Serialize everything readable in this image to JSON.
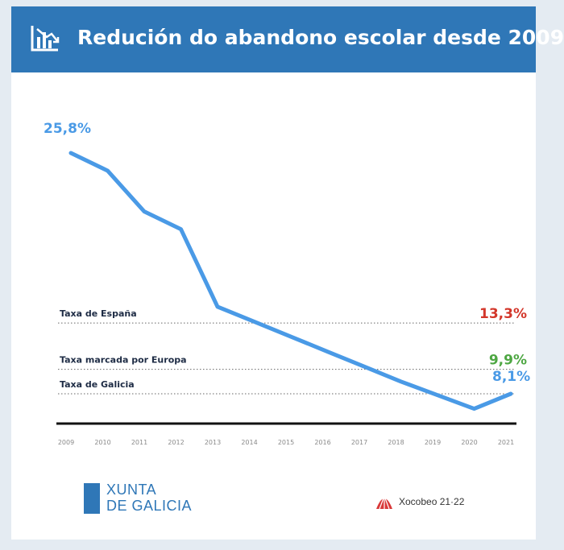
{
  "header": {
    "title": "Redución do abandono escolar desde 2009",
    "icon": "chart-decline-icon"
  },
  "colors": {
    "header_bg": "#2f77b7",
    "line": "#4a9ae6",
    "spain": "#d3372b",
    "europe": "#4ea743",
    "galicia": "#4a9ae6"
  },
  "chart_data": {
    "type": "line",
    "title": "Redución do abandono escolar desde 2009",
    "x": [
      "2009",
      "2010",
      "2011",
      "2012",
      "2013",
      "2014",
      "2015",
      "2016",
      "2017",
      "2018",
      "2019",
      "2020",
      "2021"
    ],
    "y": [
      25.8,
      24.5,
      21.5,
      20.2,
      14.5,
      13.4,
      12.3,
      11.2,
      10.1,
      9.0,
      8.0,
      7.0,
      8.1
    ],
    "ylim": [
      5.0,
      27.0
    ],
    "labels": {
      "start": "25,8%",
      "end": "8,1%"
    },
    "reference_lines": [
      {
        "label": "Taxa de España",
        "value_text": "13,3%",
        "value": 13.3,
        "color": "#d3372b"
      },
      {
        "label": "Taxa marcada por Europa",
        "value_text": "9,9%",
        "value": 9.9,
        "color": "#4ea743"
      },
      {
        "label": "Taxa de Galicia",
        "value_text": "8,1%",
        "value": 8.1,
        "color": "#4a9ae6"
      }
    ]
  },
  "footer": {
    "xunta_line1": "XUNTA",
    "xunta_line2": "DE GALICIA",
    "xocobeo": "Xocobeo 21·22"
  }
}
